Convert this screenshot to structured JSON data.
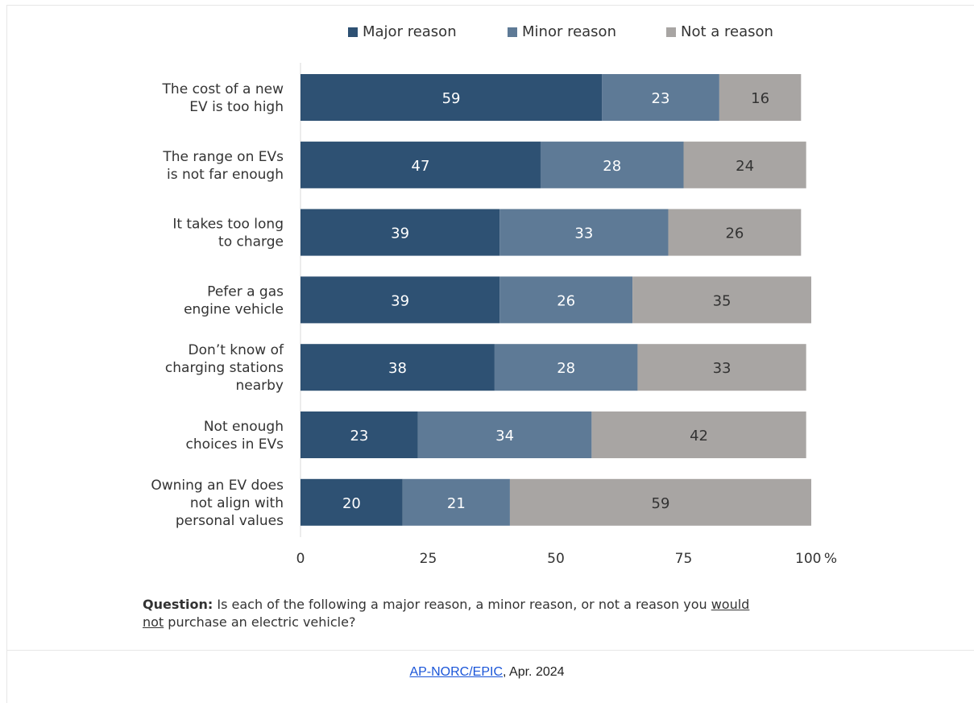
{
  "chart_data": {
    "type": "bar",
    "orientation": "horizontal",
    "stacked": true,
    "categories": [
      [
        "The cost of a new",
        "EV is too high"
      ],
      [
        "The range on EVs",
        "is not far enough"
      ],
      [
        "It takes too long",
        "to charge"
      ],
      [
        "Pefer a gas",
        "engine vehicle"
      ],
      [
        "Don’t know of",
        "charging stations",
        "nearby"
      ],
      [
        "Not enough",
        "choices in EVs"
      ],
      [
        "Owning an EV does",
        "not align with",
        "personal values"
      ]
    ],
    "series": [
      {
        "name": "Major reason",
        "color": "#2e5173",
        "label_color": "#ffffff",
        "values": [
          59,
          47,
          39,
          39,
          38,
          23,
          20
        ]
      },
      {
        "name": "Minor reason",
        "color": "#5e7a96",
        "label_color": "#ffffff",
        "values": [
          23,
          28,
          33,
          26,
          28,
          34,
          21
        ]
      },
      {
        "name": "Not a reason",
        "color": "#a8a5a3",
        "label_color": "#333333",
        "values": [
          16,
          24,
          26,
          35,
          33,
          42,
          59
        ]
      }
    ],
    "xlim": [
      0,
      100
    ],
    "xticks": [
      "0",
      "25",
      "50",
      "75",
      "100 %"
    ],
    "xtick_values": [
      0,
      25,
      50,
      75,
      100
    ],
    "legend_position": "top",
    "grid": false
  },
  "question": {
    "label": "Question:",
    "text_before": " Is each of the following a major reason, a minor reason, or not a reason you ",
    "underlined_1": "would",
    "underlined_2": "not",
    "text_after": " purchase an electric vehicle?"
  },
  "source": {
    "link_text": "AP-NORC/EPIC",
    "suffix": ", Apr. 2024"
  }
}
